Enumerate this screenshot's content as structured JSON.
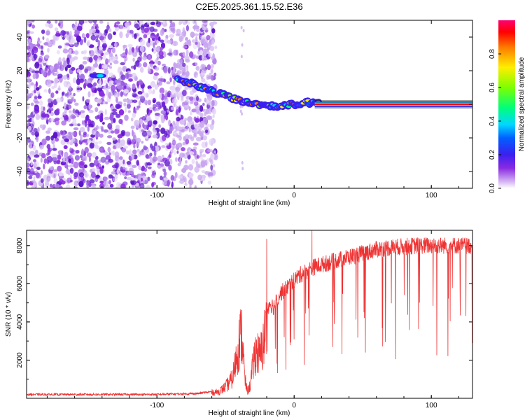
{
  "title": "C2E5.2025.361.15.52.E36",
  "chart_data": [
    {
      "type": "heatmap",
      "xlabel": "Height of straight line (km)",
      "ylabel": "Frequency (Hz)",
      "xlim": [
        -195,
        130
      ],
      "ylim": [
        -50,
        50
      ],
      "x_ticks": [
        "-100",
        "0",
        "100"
      ],
      "x_tick_values": [
        -100,
        0,
        100
      ],
      "y_ticks": [
        "-40",
        "-20",
        "0",
        "20",
        "40"
      ],
      "y_tick_values": [
        -40,
        -20,
        0,
        20,
        40
      ],
      "noise_region_x": [
        -195,
        -62
      ],
      "signal_track": [
        {
          "x": -148,
          "y": 17
        },
        {
          "x": -140,
          "y": 17
        },
        {
          "x": -85,
          "y": 15
        },
        {
          "x": -70,
          "y": 11
        },
        {
          "x": -60,
          "y": 8
        },
        {
          "x": -50,
          "y": 5
        },
        {
          "x": -40,
          "y": 2
        },
        {
          "x": -30,
          "y": 0
        },
        {
          "x": -15,
          "y": -1
        },
        {
          "x": 0,
          "y": 0
        },
        {
          "x": 10,
          "y": 1
        },
        {
          "x": 20,
          "y": 0
        },
        {
          "x": 130,
          "y": 0
        }
      ],
      "colorbar": {
        "label": "Normalized spectral amplitude",
        "ticks": [
          "0.0",
          "0.2",
          "0.4",
          "0.6",
          "0.8"
        ],
        "tick_values": [
          0,
          0.2,
          0.4,
          0.6,
          0.8
        ],
        "range": [
          0,
          1
        ]
      }
    },
    {
      "type": "line",
      "xlabel": "Height of straight line (km)",
      "ylabel": "SNR (10 * v/v)",
      "xlim": [
        -195,
        130
      ],
      "ylim": [
        0,
        8800
      ],
      "x_ticks": [
        "-100",
        "0",
        "100"
      ],
      "x_tick_values": [
        -100,
        0,
        100
      ],
      "y_ticks": [
        "2000",
        "4000",
        "6000",
        "8000"
      ],
      "y_tick_values": [
        2000,
        4000,
        6000,
        8000
      ],
      "series": [
        {
          "name": "SNR",
          "color": "#ee3333",
          "x": [
            -195,
            -150,
            -100,
            -70,
            -55,
            -50,
            -45,
            -40,
            -38,
            -36,
            -34,
            -32,
            -30,
            -28,
            -25,
            -23,
            -20,
            -18,
            -15,
            -10,
            -5,
            0,
            5,
            10,
            15,
            20,
            30,
            40,
            50,
            60,
            70,
            80,
            90,
            100,
            110,
            120,
            130
          ],
          "y": [
            200,
            200,
            200,
            250,
            400,
            700,
            1200,
            3500,
            4000,
            1200,
            400,
            800,
            2000,
            3000,
            2500,
            3200,
            4500,
            5000,
            4800,
            5500,
            5800,
            6200,
            6500,
            6700,
            6900,
            7000,
            7200,
            7400,
            7600,
            7800,
            7900,
            7950,
            8000,
            8000,
            8000,
            8000,
            8000
          ]
        }
      ],
      "annotations_peaks": [
        {
          "x": -20,
          "y": 8350
        },
        {
          "x": 13,
          "y": 8800
        }
      ]
    }
  ],
  "colors": {
    "signal_line": "#ee3333",
    "noise_dots": "#8a2be2"
  }
}
